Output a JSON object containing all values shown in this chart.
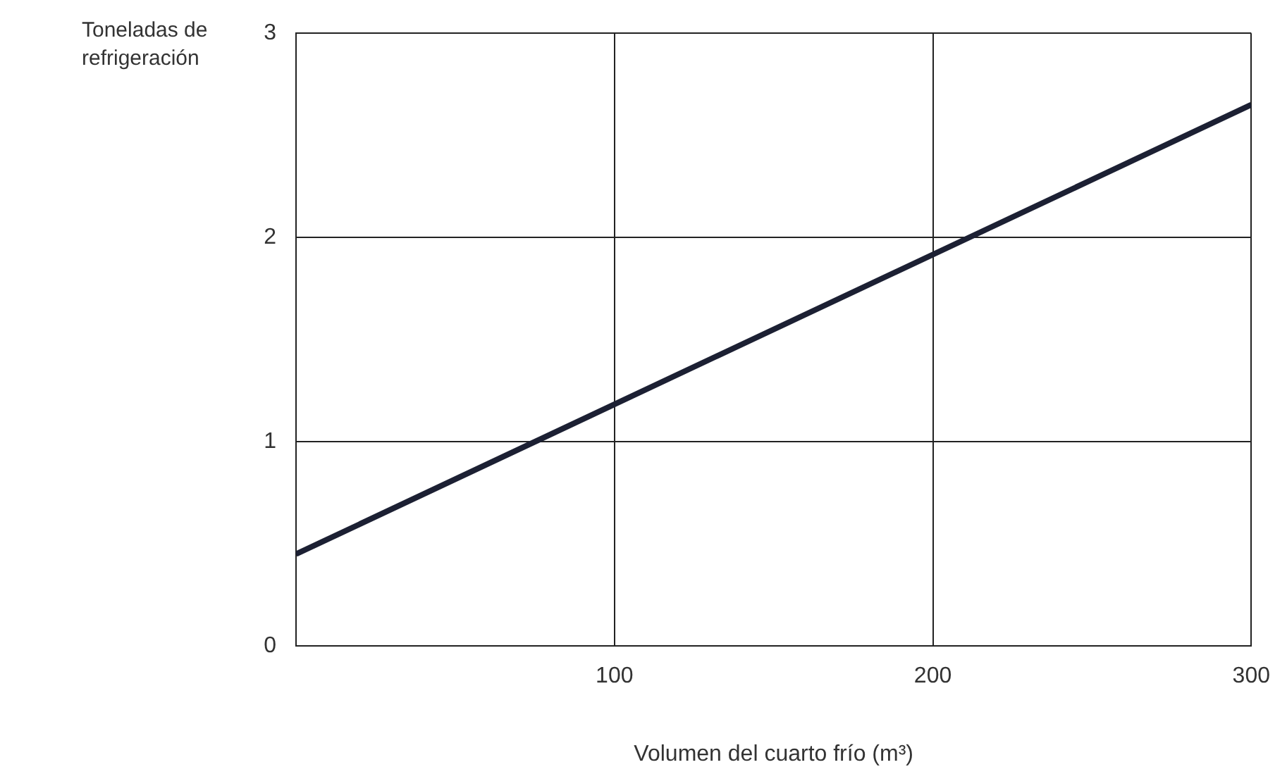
{
  "chart_data": {
    "type": "line",
    "xlabel": "Volumen del cuarto frío (m³)",
    "ylabel": "Toneladas de refrigeración",
    "x": [
      0,
      300
    ],
    "series": [
      {
        "color": "#1c2033",
        "values": [
          0.45,
          2.65
        ]
      }
    ],
    "xlim": [
      0,
      300
    ],
    "xticks": [
      {
        "value": 0,
        "label": null
      },
      100,
      200,
      300
    ],
    "ylim": [
      0,
      3
    ],
    "yticks": [
      0,
      1,
      2,
      3
    ],
    "grid": true,
    "legend": false,
    "marker": "none",
    "line_style": "solid"
  }
}
